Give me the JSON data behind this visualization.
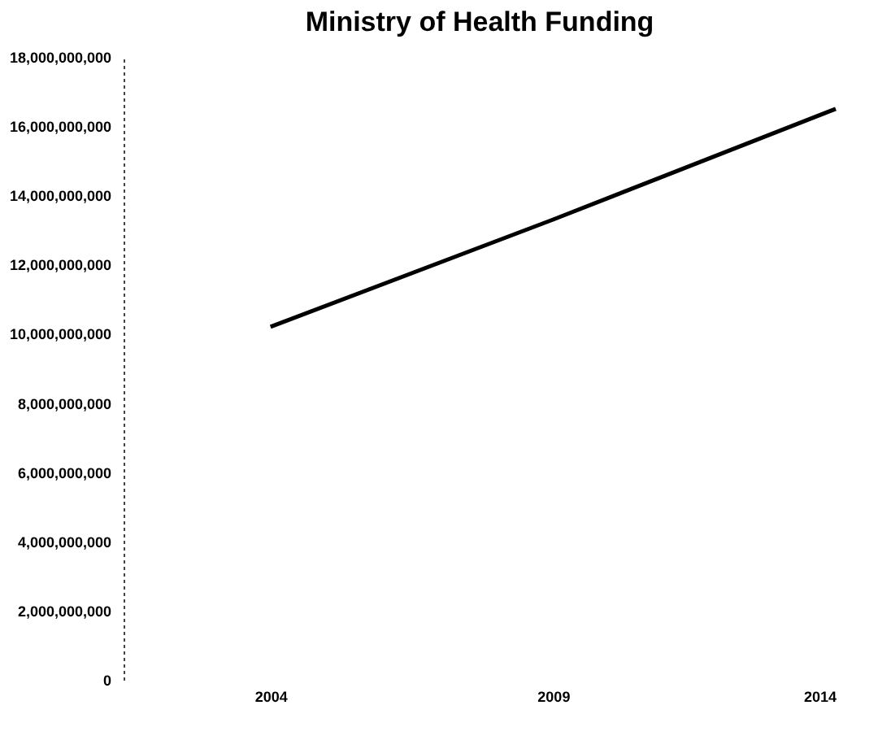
{
  "chart_data": {
    "type": "line",
    "title": "Ministry of Health Funding",
    "x": [
      2004,
      2009,
      2014
    ],
    "series": [
      {
        "color": "#000000",
        "values": [
          10200000000,
          13300000000,
          16500000000
        ]
      }
    ],
    "xlim": [
      2001.4,
      2014
    ],
    "xticks": [
      2004,
      2009,
      2014
    ],
    "ylim": [
      0,
      18000000000
    ],
    "yticks": [
      0,
      {
        "value": 2000000000,
        "label": "2,000,000,000"
      },
      {
        "value": 4000000000,
        "label": "4,000,000,000"
      },
      {
        "value": 6000000000,
        "label": "6,000,000,000"
      },
      {
        "value": 8000000000,
        "label": "8,000,000,000"
      },
      {
        "value": 10000000000,
        "label": "10,000,000,000"
      },
      {
        "value": 12000000000,
        "label": "12,000,000,000"
      },
      {
        "value": 14000000000,
        "label": "14,000,000,000"
      },
      {
        "value": 16000000000,
        "label": "16,000,000,000"
      },
      {
        "value": 18000000000,
        "label": "18,000,000,000"
      }
    ],
    "grid": false,
    "legend": false,
    "marker": "none",
    "line_style": "solid"
  }
}
